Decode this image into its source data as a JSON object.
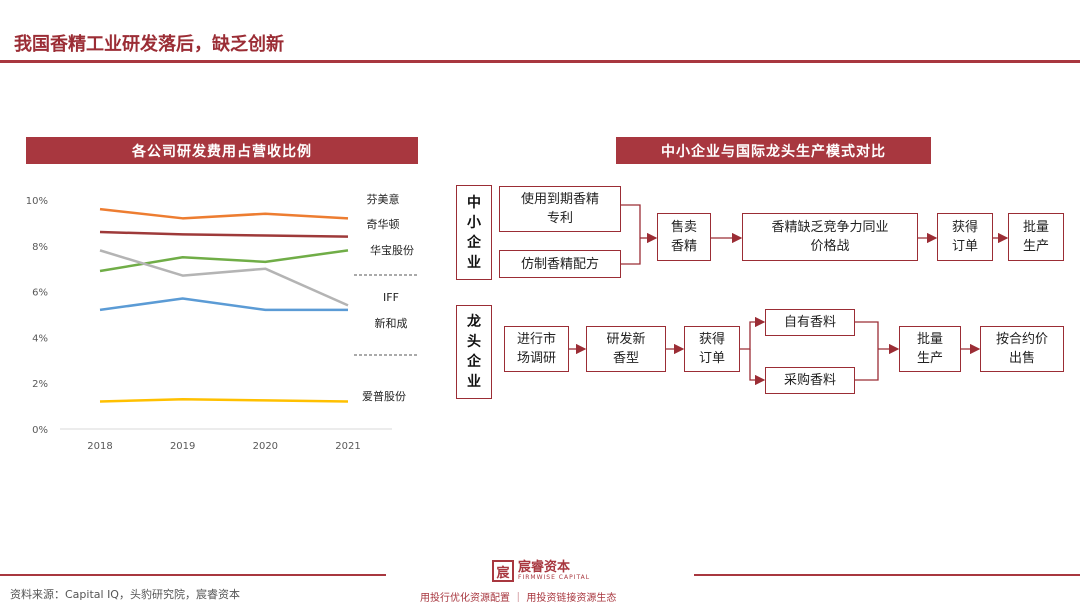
{
  "page": {
    "title": "我国香精工业研发落后，缺乏创新"
  },
  "left_panel": {
    "banner": "各公司研发费用占营收比例"
  },
  "right_panel": {
    "banner": "中小企业与国际龙头生产模式对比"
  },
  "chart_data": {
    "type": "line",
    "title": "各公司研发费用占营收比例",
    "categories": [
      "2018",
      "2019",
      "2020",
      "2021"
    ],
    "ylim": [
      0,
      10
    ],
    "yticks": [
      "0%",
      "2%",
      "4%",
      "6%",
      "8%",
      "10%"
    ],
    "grid": false,
    "series": [
      {
        "name": "芬美意",
        "color": "#ed7d31",
        "values": [
          9.6,
          9.2,
          9.4,
          9.2
        ]
      },
      {
        "name": "奇华顿",
        "color": "#9e3a3a",
        "values": [
          8.6,
          8.5,
          8.45,
          8.4
        ]
      },
      {
        "name": "华宝股份",
        "color": "#70ad47",
        "values": [
          6.9,
          7.5,
          7.3,
          7.8
        ]
      },
      {
        "name": "IFF",
        "color": "#b4b4b4",
        "values": [
          7.8,
          6.7,
          7.0,
          5.4
        ]
      },
      {
        "name": "新和成",
        "color": "#5b9bd5",
        "values": [
          5.2,
          5.7,
          5.2,
          5.2
        ]
      },
      {
        "name": "爱普股份",
        "color": "#ffc000",
        "values": [
          1.2,
          1.3,
          1.25,
          1.2
        ]
      }
    ]
  },
  "flow": {
    "sme": {
      "label": "中小企业",
      "step_a1": "使用到期香精专利",
      "step_a2": "仿制香精配方",
      "step_b": "售卖香精",
      "step_c": "香精缺乏竞争力同业价格战",
      "step_d": "获得订单",
      "step_e": "批量生产"
    },
    "leader": {
      "label": "龙头企业",
      "step_a": "进行市场调研",
      "step_b": "研发新香型",
      "step_c": "获得订单",
      "step_d1": "自有香料",
      "step_d2": "采购香料",
      "step_e": "批量生产",
      "step_f": "按合约价出售"
    }
  },
  "footer": {
    "source": "资料来源：Capital IQ，头豹研究院，宸睿资本",
    "logo_mark": "宸",
    "logo_name": "宸睿资本",
    "logo_sub": "FIRMWISE CAPITAL",
    "slogan": "用投行优化资源配置 ｜ 用投资链接资源生态"
  }
}
